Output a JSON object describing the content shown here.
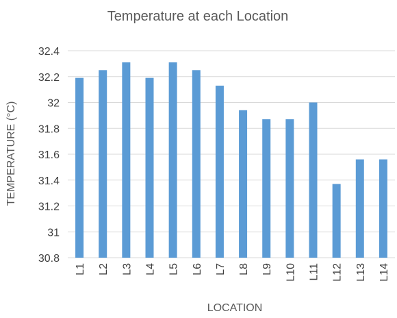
{
  "chart_data": {
    "type": "bar",
    "title": "Temperature at each Location",
    "xlabel": "LOCATION",
    "ylabel": "TEMPERATURE (°C)",
    "categories": [
      "L1",
      "L2",
      "L3",
      "L4",
      "L5",
      "L6",
      "L7",
      "L8",
      "L9",
      "L10",
      "L11",
      "L12",
      "L13",
      "L14"
    ],
    "values": [
      32.19,
      32.25,
      32.31,
      32.19,
      32.31,
      32.25,
      32.13,
      31.94,
      31.87,
      31.87,
      32.0,
      31.37,
      31.56,
      31.56
    ],
    "ylim": [
      30.8,
      32.4
    ],
    "yticks": [
      "30.8",
      "31",
      "31.2",
      "31.4",
      "31.6",
      "31.8",
      "32",
      "32.2",
      "32.4"
    ],
    "grid": true,
    "legend": "none",
    "bar_color": "#5b9bd5"
  }
}
